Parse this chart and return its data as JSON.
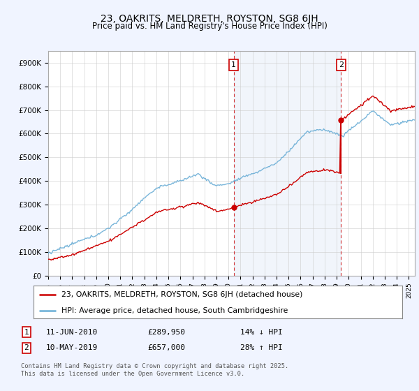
{
  "title": "23, OAKRITS, MELDRETH, ROYSTON, SG8 6JH",
  "subtitle": "Price paid vs. HM Land Registry's House Price Index (HPI)",
  "ylabel_ticks": [
    "£0",
    "£100K",
    "£200K",
    "£300K",
    "£400K",
    "£500K",
    "£600K",
    "£700K",
    "£800K",
    "£900K"
  ],
  "ytick_values": [
    0,
    100000,
    200000,
    300000,
    400000,
    500000,
    600000,
    700000,
    800000,
    900000
  ],
  "ylim": [
    0,
    950000
  ],
  "xlim_start": 1995.0,
  "xlim_end": 2025.5,
  "hpi_color": "#6baed6",
  "hpi_fill_color": "#ddeeff",
  "price_color": "#cc0000",
  "marker_color": "#cc0000",
  "vline_color": "#cc0000",
  "shade_between_color": "#ddeeff",
  "sale1_x": 2010.44,
  "sale1_y": 289950,
  "sale1_label": "1",
  "sale1_date": "11-JUN-2010",
  "sale1_price": "£289,950",
  "sale1_hpi": "14% ↓ HPI",
  "sale2_x": 2019.36,
  "sale2_y": 657000,
  "sale2_label": "2",
  "sale2_date": "10-MAY-2019",
  "sale2_price": "£657,000",
  "sale2_hpi": "28% ↑ HPI",
  "legend_line1": "23, OAKRITS, MELDRETH, ROYSTON, SG8 6JH (detached house)",
  "legend_line2": "HPI: Average price, detached house, South Cambridgeshire",
  "footnote": "Contains HM Land Registry data © Crown copyright and database right 2025.\nThis data is licensed under the Open Government Licence v3.0.",
  "background_color": "#f0f4ff",
  "plot_bg_color": "#ffffff",
  "title_fontsize": 10,
  "tick_fontsize": 7.5,
  "legend_fontsize": 8
}
